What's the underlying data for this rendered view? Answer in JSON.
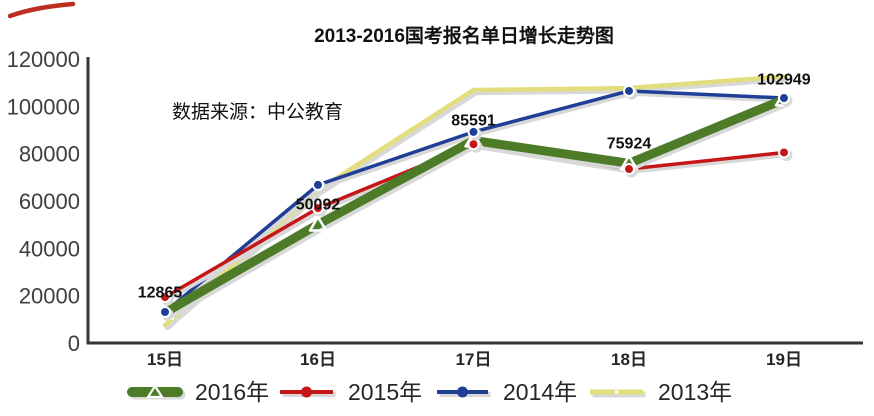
{
  "chart_data": {
    "type": "line",
    "title": "2013-2016国考报名单日增长走势图",
    "source_note": "数据来源：中公教育",
    "categories": [
      "15日",
      "16日",
      "17日",
      "18日",
      "19日"
    ],
    "series": [
      {
        "name": "2016年",
        "color": "#4e7b28",
        "style": "thick-triangle",
        "values": [
          12865,
          50092,
          85591,
          75924,
          102949
        ]
      },
      {
        "name": "2015年",
        "color": "#c51718",
        "style": "line-dot",
        "values": [
          19400,
          57000,
          84000,
          73500,
          80500
        ]
      },
      {
        "name": "2014年",
        "color": "#1f3e96",
        "style": "line-dot",
        "values": [
          13100,
          66800,
          89200,
          106500,
          103500
        ]
      },
      {
        "name": "2013年",
        "color": "#e3de7d",
        "style": "line",
        "values": [
          7600,
          64600,
          106900,
          107700,
          112600
        ]
      }
    ],
    "data_labels": [
      "12865",
      "50092",
      "85591",
      "75924",
      "102949"
    ],
    "data_labels_series": "2016年",
    "ylim": [
      0,
      120000
    ],
    "ytick_step": 20000,
    "yticks": [
      0,
      20000,
      40000,
      60000,
      80000,
      100000,
      120000
    ],
    "grid": false,
    "legend_position": "bottom",
    "shadow_color": "#d8d8d8",
    "axis_color": "#363636",
    "corner_mark_color": "#bd2d20"
  }
}
